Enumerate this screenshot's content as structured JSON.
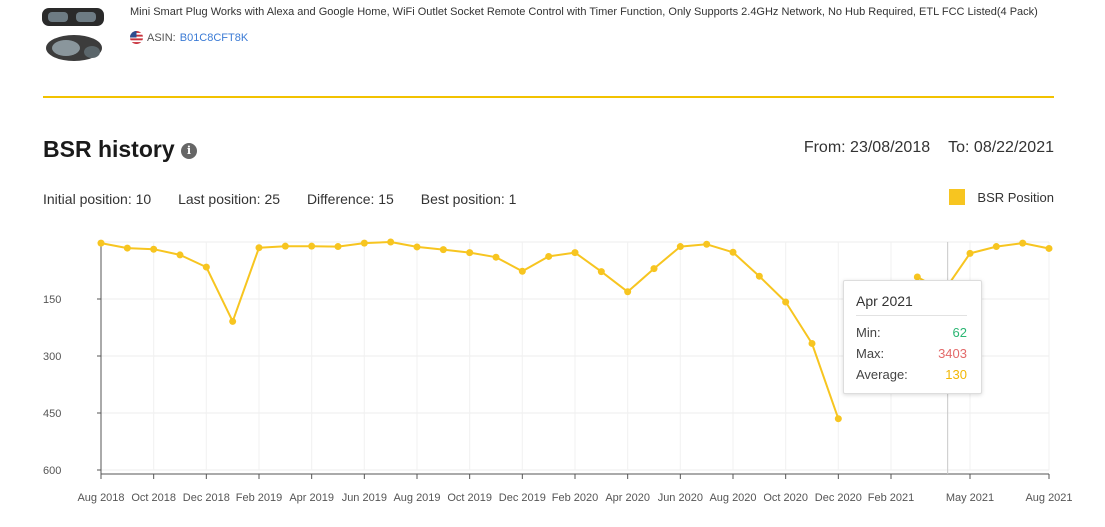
{
  "product": {
    "title": "Mini Smart Plug Works with Alexa and Google Home, WiFi Outlet Socket Remote Control with Timer Function, Only Supports 2.4GHz Network, No Hub Required, ETL FCC Listed(4 Pack)",
    "asin_label": "ASIN:",
    "asin": "B01C8CFT8K"
  },
  "header": {
    "title": "BSR history",
    "info_symbol": "i",
    "from": "From: 23/08/2018",
    "to": "To: 08/22/2021"
  },
  "stats": {
    "initial": "Initial position: 10",
    "last": "Last position: 25",
    "difference": "Difference: 15",
    "best": "Best position: 1"
  },
  "colors": {
    "accent": "#f2c200",
    "series": "#f7c520",
    "min": "#2bb673",
    "max": "#e36a6a",
    "average": "#f2b705"
  },
  "tooltip": {
    "title": "Apr 2021",
    "min_label": "Min:",
    "min_value": "62",
    "max_label": "Max:",
    "max_value": "3403",
    "avg_label": "Average:",
    "avg_value": "130"
  },
  "chart_data": {
    "type": "line",
    "title": "BSR history",
    "series": [
      {
        "name": "BSR Position",
        "x": [
          "Aug 2018",
          "Sep 2018",
          "Oct 2018",
          "Nov 2018",
          "Dec 2018",
          "Jan 2019",
          "Feb 2019",
          "Mar 2019",
          "Apr 2019",
          "May 2019",
          "Jun 2019",
          "Jul 2019",
          "Aug 2019",
          "Sep 2019",
          "Oct 2019",
          "Nov 2019",
          "Dec 2019",
          "Jan 2020",
          "Feb 2020",
          "Mar 2020",
          "Apr 2020",
          "May 2020",
          "Jun 2020",
          "Jul 2020",
          "Aug 2020",
          "Sep 2020",
          "Oct 2020",
          "Nov 2020",
          "Dec 2020",
          "Jan 2021",
          "Feb 2021",
          "Mar 2021",
          "Apr 2021",
          "May 2021",
          "Jun 2021",
          "Jul 2021",
          "Aug 2021"
        ],
        "values": [
          3,
          16,
          19,
          34,
          66,
          209,
          15,
          11,
          11,
          12,
          3,
          0,
          13,
          20,
          28,
          40,
          77,
          38,
          28,
          78,
          131,
          70,
          12,
          6,
          27,
          90,
          158,
          267,
          465,
          null,
          null,
          92,
          130,
          30,
          12,
          3,
          17
        ]
      }
    ],
    "y_ticks": [
      150,
      300,
      450,
      600
    ],
    "ylim": [
      0,
      600
    ],
    "y_reversed": true,
    "x_tick_labels": [
      "Aug 2018",
      "Oct 2018",
      "Dec 2018",
      "Feb 2019",
      "Apr 2019",
      "Jun 2019",
      "Aug 2019",
      "Oct 2019",
      "Dec 2019",
      "Feb 2020",
      "Apr 2020",
      "Jun 2020",
      "Aug 2020",
      "Oct 2020",
      "Dec 2020",
      "Feb 2021",
      "May 2021",
      "Aug 2021"
    ],
    "legend_position": "top-right",
    "grid": true
  }
}
